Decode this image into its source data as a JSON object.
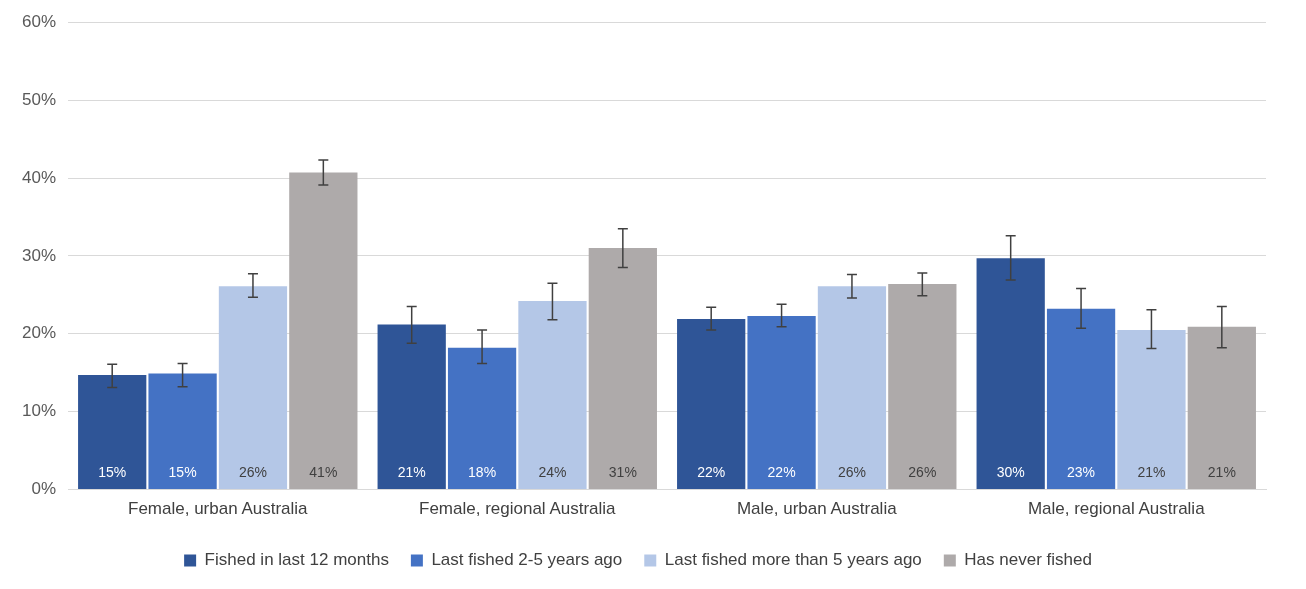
{
  "chart_data": {
    "type": "bar",
    "categories": [
      "Female, urban Australia",
      "Female, regional Australia",
      "Male, urban Australia",
      "Male, regional Australia"
    ],
    "ylim": [
      0,
      60
    ],
    "yticks": [
      {
        "value": 0,
        "label": "0%"
      },
      {
        "value": 10,
        "label": "10%"
      },
      {
        "value": 20,
        "label": "20%"
      },
      {
        "value": 30,
        "label": "30%"
      },
      {
        "value": 40,
        "label": "40%"
      },
      {
        "value": 50,
        "label": "50%"
      },
      {
        "value": 60,
        "label": "60%"
      }
    ],
    "grid": "y",
    "legend": "bottom",
    "series": [
      {
        "name": "Fished in last 12 months",
        "color": "#2f5597",
        "values": [
          14.7,
          21.2,
          21.9,
          29.7
        ],
        "errors": [
          [
            13.1,
            16.1
          ],
          [
            18.8,
            23.5
          ],
          [
            20.5,
            23.4
          ],
          [
            26.9,
            32.6
          ]
        ],
        "value_labels": [
          "15%",
          "21%",
          "22%",
          "30%"
        ]
      },
      {
        "name": "Last fished 2-5 years ago",
        "color": "#4472c4",
        "values": [
          14.9,
          18.2,
          22.3,
          23.2
        ],
        "errors": [
          [
            13.2,
            16.2
          ],
          [
            16.2,
            20.5
          ],
          [
            20.9,
            23.8
          ],
          [
            20.7,
            25.8
          ]
        ],
        "value_labels": [
          "15%",
          "18%",
          "22%",
          "23%"
        ]
      },
      {
        "name": "Last fished more than 5 years ago",
        "color": "#b4c7e7",
        "values": [
          26.1,
          24.2,
          26.1,
          20.5
        ],
        "errors": [
          [
            24.7,
            27.7
          ],
          [
            21.8,
            26.5
          ],
          [
            24.6,
            27.6
          ],
          [
            18.1,
            23.1
          ]
        ],
        "value_labels": [
          "26%",
          "24%",
          "26%",
          "21%"
        ]
      },
      {
        "name": "Has never fished",
        "color": "#aeaaaa",
        "values": [
          40.7,
          31.0,
          26.4,
          20.9
        ],
        "errors": [
          [
            39.1,
            42.3
          ],
          [
            28.5,
            33.5
          ],
          [
            24.9,
            27.8
          ],
          [
            18.2,
            23.5
          ]
        ],
        "value_labels": [
          "41%",
          "31%",
          "26%",
          "21%"
        ]
      }
    ]
  }
}
